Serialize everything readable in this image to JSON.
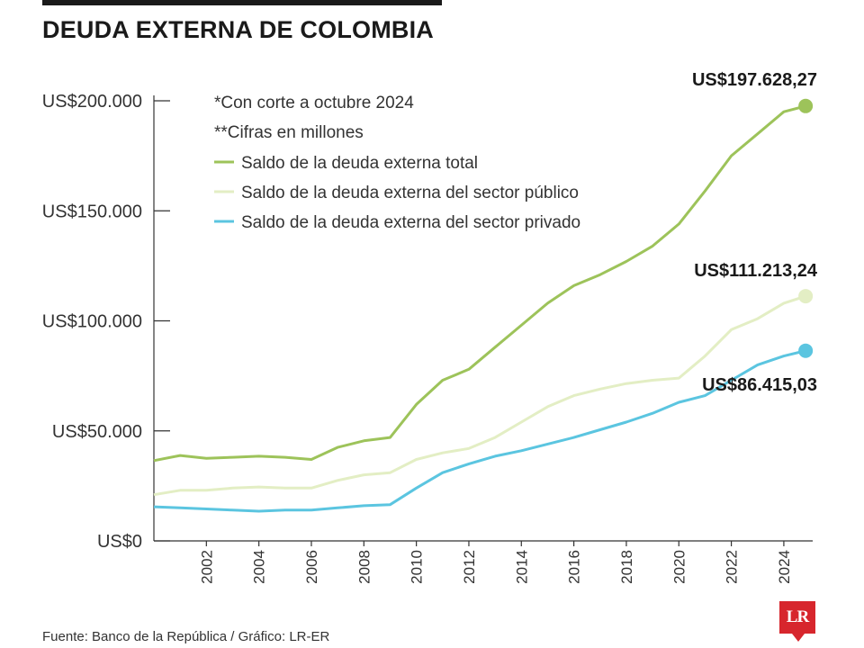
{
  "title": "DEUDA EXTERNA DE COLOMBIA",
  "source": "Fuente: Banco de la República / Gráfico: LR-ER",
  "logo": "LR",
  "chart_data": {
    "type": "line",
    "title": "DEUDA EXTERNA DE COLOMBIA",
    "xlabel": "",
    "ylabel": "",
    "xlim": [
      2000.0,
      2025.1
    ],
    "ylim": [
      0,
      200000
    ],
    "grid": false,
    "legend_position": "top-left",
    "y_ticks": [
      0,
      50000,
      100000,
      150000,
      200000
    ],
    "y_tick_labels": [
      "US$0",
      "US$50.000",
      "US$100.000",
      "US$150.000",
      "US$200.000"
    ],
    "x_ticks": [
      2002,
      2004,
      2006,
      2008,
      2010,
      2012,
      2014,
      2016,
      2018,
      2020,
      2022,
      2024
    ],
    "x_tick_labels": [
      "2002",
      "2004",
      "2006",
      "2008",
      "2010",
      "2012",
      "2014",
      "2016",
      "2018",
      "2020",
      "2022",
      "2024"
    ],
    "notes": [
      "*Con corte a octubre 2024",
      "**Cifras en millones"
    ],
    "series": [
      {
        "name": "Saldo de la deuda externa total",
        "color": "#9dc35a",
        "x": [
          2000.0,
          2001,
          2002,
          2003,
          2004,
          2005,
          2006,
          2007,
          2008,
          2009,
          2010,
          2011,
          2012,
          2013,
          2014,
          2015,
          2016,
          2017,
          2018,
          2019,
          2020,
          2021,
          2022,
          2023,
          2024,
          2024.83
        ],
        "y": [
          36500,
          38800,
          37500,
          38000,
          38500,
          38000,
          37000,
          42500,
          45500,
          47000,
          62000,
          73000,
          78000,
          88000,
          98000,
          108000,
          116000,
          121000,
          127000,
          134000,
          144000,
          159000,
          175000,
          185000,
          195000,
          197628.27
        ],
        "end_label": "US$197.628,27"
      },
      {
        "name": "Saldo de la deuda externa del sector público",
        "color": "#e3eec4",
        "x": [
          2000.0,
          2001,
          2002,
          2003,
          2004,
          2005,
          2006,
          2007,
          2008,
          2009,
          2010,
          2011,
          2012,
          2013,
          2014,
          2015,
          2016,
          2017,
          2018,
          2019,
          2020,
          2021,
          2022,
          2023,
          2024,
          2024.83
        ],
        "y": [
          21000,
          23000,
          23000,
          24000,
          24500,
          24000,
          24000,
          27500,
          30000,
          31000,
          37000,
          40000,
          42000,
          47000,
          54000,
          61000,
          66000,
          69000,
          71500,
          73000,
          74000,
          84000,
          96000,
          101000,
          108000,
          111213.24
        ],
        "end_label": "US$111.213,24"
      },
      {
        "name": "Saldo de la deuda externa del sector privado",
        "color": "#5bc5e0",
        "x": [
          2000.0,
          2001,
          2002,
          2003,
          2004,
          2005,
          2006,
          2007,
          2008,
          2009,
          2010,
          2011,
          2012,
          2013,
          2014,
          2015,
          2016,
          2017,
          2018,
          2019,
          2020,
          2021,
          2022,
          2023,
          2024,
          2024.83
        ],
        "y": [
          15500,
          15000,
          14500,
          14000,
          13500,
          14000,
          14000,
          15000,
          16000,
          16500,
          24000,
          31000,
          35000,
          38500,
          41000,
          44000,
          47000,
          50500,
          54000,
          58000,
          63000,
          66000,
          73000,
          80000,
          84000,
          86415.03
        ],
        "end_label": "US$86.415,03"
      }
    ]
  }
}
